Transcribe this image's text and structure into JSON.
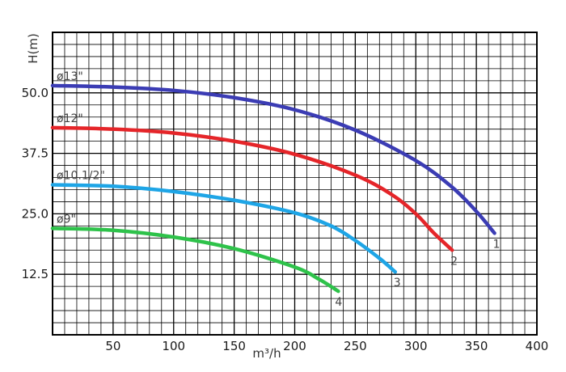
{
  "chart_data": {
    "type": "line",
    "xlabel": "m³/h",
    "ylabel": "H(m)",
    "xlim": [
      0,
      400
    ],
    "ylim": [
      0,
      62.5
    ],
    "x_ticks": [
      "50",
      "100",
      "150",
      "200",
      "250",
      "300",
      "350",
      "400"
    ],
    "y_ticks": [
      "12.5",
      "25.0",
      "37.5",
      "50.0"
    ],
    "grid": true,
    "series": [
      {
        "name": "ø13\"",
        "end_label": "1",
        "color": "#3b3cb4",
        "points": [
          [
            0,
            51.5
          ],
          [
            50,
            51.2
          ],
          [
            100,
            50.5
          ],
          [
            150,
            49.0
          ],
          [
            200,
            46.5
          ],
          [
            250,
            42.3
          ],
          [
            300,
            36.0
          ],
          [
            330,
            30.5
          ],
          [
            350,
            25.5
          ],
          [
            365,
            21.0
          ]
        ]
      },
      {
        "name": "ø12\"",
        "end_label": "2",
        "color": "#e52529",
        "points": [
          [
            0,
            42.8
          ],
          [
            50,
            42.5
          ],
          [
            100,
            41.7
          ],
          [
            150,
            40.0
          ],
          [
            200,
            37.3
          ],
          [
            250,
            33.0
          ],
          [
            280,
            29.0
          ],
          [
            300,
            25.0
          ],
          [
            315,
            21.0
          ],
          [
            330,
            17.5
          ]
        ]
      },
      {
        "name": "ø10.1/2\"",
        "end_label": "3",
        "color": "#1ea5e6",
        "points": [
          [
            0,
            31.0
          ],
          [
            50,
            30.7
          ],
          [
            100,
            29.6
          ],
          [
            150,
            27.8
          ],
          [
            200,
            25.2
          ],
          [
            230,
            22.5
          ],
          [
            250,
            19.5
          ],
          [
            270,
            15.8
          ],
          [
            283,
            13.0
          ]
        ]
      },
      {
        "name": "ø9\"",
        "end_label": "4",
        "color": "#2ec24a",
        "points": [
          [
            0,
            22.0
          ],
          [
            50,
            21.6
          ],
          [
            100,
            20.2
          ],
          [
            150,
            17.8
          ],
          [
            200,
            14.0
          ],
          [
            220,
            11.5
          ],
          [
            236,
            9.0
          ]
        ]
      }
    ]
  }
}
